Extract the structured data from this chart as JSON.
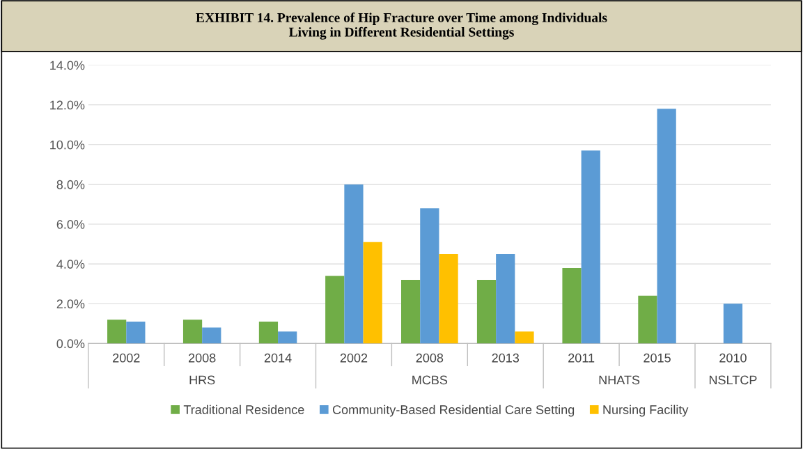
{
  "chart_data": {
    "type": "bar",
    "title": "EXHIBIT 14. Prevalence of Hip Fracture over Time among Individuals\nLiving in Different Residential Settings",
    "categories": [
      "2002",
      "2008",
      "2014",
      "2002",
      "2008",
      "2013",
      "2011",
      "2015",
      "2010"
    ],
    "series": [
      {
        "name": "Traditional Residence",
        "color": "#70ad47",
        "values": [
          1.2,
          1.2,
          1.1,
          3.4,
          3.2,
          3.2,
          3.8,
          2.4,
          null
        ]
      },
      {
        "name": "Community-Based Residential Care Setting",
        "color": "#5b9bd5",
        "values": [
          1.1,
          0.8,
          0.6,
          8.0,
          6.8,
          4.5,
          9.7,
          11.8,
          2.0
        ]
      },
      {
        "name": "Nursing Facility",
        "color": "#ffc000",
        "values": [
          null,
          null,
          null,
          5.1,
          4.5,
          0.6,
          null,
          null,
          null
        ]
      }
    ],
    "annotations": [
      "HRS",
      "MCBS",
      "NHATS",
      "NSLTCP"
    ],
    "ylim": [
      0,
      14
    ],
    "yticks": [
      {
        "value": 0,
        "label": "0.0%"
      },
      {
        "value": 2,
        "label": "2.0%"
      },
      {
        "value": 4,
        "label": "4.0%"
      },
      {
        "value": 6,
        "label": "6.0%"
      },
      {
        "value": 8,
        "label": "8.0%"
      },
      {
        "value": 10,
        "label": "10.0%"
      },
      {
        "value": 12,
        "label": "12.0%"
      },
      {
        "value": 14,
        "label": "14.0%"
      }
    ],
    "grid": "y",
    "legend": "bottom"
  }
}
